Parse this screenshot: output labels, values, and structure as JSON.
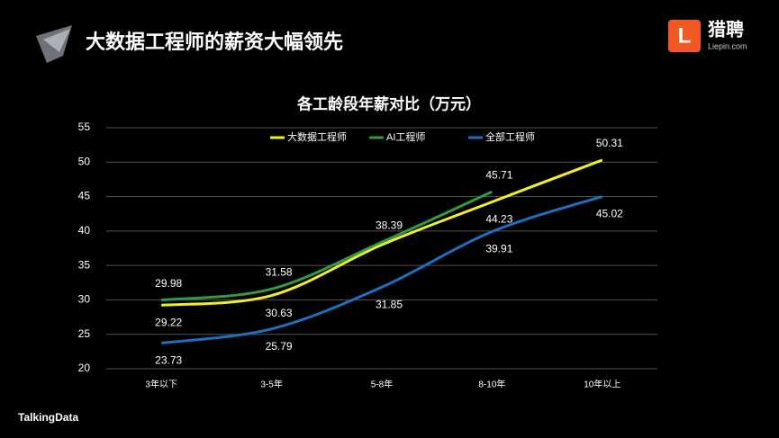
{
  "header": {
    "title": "大数据工程师的薪资大幅领先",
    "brand": "猎聘",
    "brand_url": "Liepin.com",
    "footer": "TalkingData"
  },
  "chart_data": {
    "type": "line",
    "title": "各工龄段年薪对比（万元）",
    "categories": [
      "3年以下",
      "3-5年",
      "5-8年",
      "8-10年",
      "10年以上"
    ],
    "series": [
      {
        "name": "大数据工程师",
        "color": "#f2ee2a",
        "values": [
          29.22,
          30.63,
          38.0,
          44.23,
          50.31
        ],
        "value_labels": [
          "29.22",
          "30.63",
          null,
          "44.23",
          "50.31"
        ]
      },
      {
        "name": "AI工程师",
        "color": "#2e9a4a",
        "values": [
          29.98,
          31.58,
          38.39,
          45.71,
          null
        ]
      },
      {
        "name": "全部工程师",
        "color": "#1f6fc0",
        "values": [
          23.73,
          25.79,
          31.85,
          39.91,
          45.02
        ]
      }
    ],
    "ylim": [
      20,
      55
    ],
    "yticks": [
      20,
      25,
      30,
      35,
      40,
      45,
      50,
      55
    ],
    "grid": true,
    "legend": "top"
  }
}
